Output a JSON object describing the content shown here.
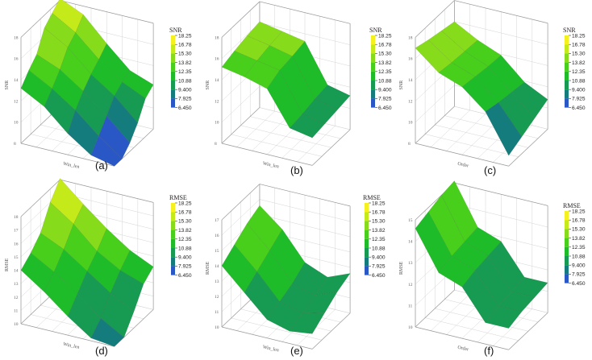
{
  "colorbar": {
    "levels": [
      "18.25",
      "16.78",
      "15.30",
      "13.82",
      "12.35",
      "10.88",
      "9.400",
      "7.925",
      "6.450"
    ],
    "colors": [
      "#f4f11e",
      "#c4ea1a",
      "#86dc1a",
      "#47cf1c",
      "#1fbc2a",
      "#179a52",
      "#157c7e",
      "#2a57c6",
      "#3f3af0"
    ]
  },
  "chart_data": [
    {
      "type": "surface3d",
      "panel_label": "(a)",
      "colorbar_title": "SNR",
      "xlabel": "Win_len",
      "ylabel": "",
      "zlabel": "SNR",
      "zlim": [
        8,
        18
      ],
      "z_ticks": [
        "8",
        "10",
        "12",
        "14",
        "16",
        "18"
      ],
      "grid": [
        [
          13.2,
          12.0,
          10.0,
          8.5,
          7.2
        ],
        [
          14.2,
          13.0,
          11.5,
          9.6,
          8.0
        ],
        [
          15.0,
          14.1,
          12.6,
          10.8,
          8.8
        ],
        [
          16.8,
          15.5,
          13.5,
          12.0,
          10.0
        ],
        [
          17.5,
          16.2,
          14.2,
          12.6,
          11.6
        ],
        [
          18.2,
          17.2,
          15.0,
          13.0,
          12.2
        ]
      ]
    },
    {
      "type": "surface3d",
      "panel_label": "(b)",
      "colorbar_title": "SNR",
      "xlabel": "Win_len",
      "ylabel": "",
      "zlabel": "SNR",
      "zlim": [
        8,
        18
      ],
      "z_ticks": [
        "8",
        "10",
        "12",
        "14",
        "16",
        "18"
      ],
      "grid": [
        [
          15.2,
          14.8,
          14.2,
          11.0,
          10.6
        ],
        [
          15.6,
          15.2,
          14.8,
          11.2,
          10.8
        ],
        [
          15.9,
          15.5,
          15.0,
          11.5,
          11.0
        ],
        [
          16.1,
          15.7,
          15.3,
          11.7,
          11.2
        ]
      ]
    },
    {
      "type": "surface3d",
      "panel_label": "(c)",
      "colorbar_title": "SNR",
      "xlabel": "Order",
      "ylabel": "",
      "zlabel": "SNR",
      "zlim": [
        8,
        18
      ],
      "z_ticks": [
        "8",
        "10",
        "12",
        "14",
        "16",
        "18"
      ],
      "grid": [
        [
          17.0,
          15.2,
          14.4,
          12.6,
          9.0
        ],
        [
          16.6,
          15.0,
          14.2,
          12.3,
          9.6
        ],
        [
          16.3,
          14.9,
          14.0,
          12.1,
          10.2
        ],
        [
          16.0,
          14.8,
          13.9,
          11.9,
          10.8
        ]
      ]
    },
    {
      "type": "surface3d",
      "panel_label": "(d)",
      "colorbar_title": "RMSE",
      "xlabel": "Win_len",
      "ylabel": "",
      "zlabel": "RMSE",
      "zlim": [
        10,
        18
      ],
      "z_ticks": [
        "10",
        "11",
        "12",
        "13",
        "14",
        "15",
        "16",
        "17",
        "18"
      ],
      "grid": [
        [
          14.0,
          12.8,
          11.4,
          10.2,
          8.6
        ],
        [
          14.6,
          13.6,
          12.4,
          11.0,
          9.8
        ],
        [
          15.4,
          14.6,
          13.4,
          12.2,
          11.2
        ],
        [
          17.0,
          15.8,
          14.2,
          13.2,
          12.6
        ],
        [
          18.1,
          16.6,
          15.2,
          14.0,
          13.2
        ]
      ]
    },
    {
      "type": "surface3d",
      "panel_label": "(e)",
      "colorbar_title": "RMSE",
      "xlabel": "Win_len",
      "ylabel": "",
      "zlabel": "RMSE",
      "zlim": [
        10,
        17
      ],
      "z_ticks": [
        "10",
        "11",
        "12",
        "13",
        "14",
        "15",
        "16",
        "17"
      ],
      "grid": [
        [
          14.0,
          12.6,
          11.2,
          10.8,
          11.0
        ],
        [
          14.6,
          13.2,
          11.6,
          11.2,
          11.6
        ],
        [
          15.2,
          13.8,
          12.0,
          11.6,
          12.2
        ],
        [
          15.6,
          14.4,
          12.6,
          12.0,
          12.6
        ]
      ]
    },
    {
      "type": "surface3d",
      "panel_label": "(f)",
      "colorbar_title": "RMSE",
      "xlabel": "Order",
      "ylabel": "",
      "zlabel": "RMSE",
      "zlim": [
        10,
        15
      ],
      "z_ticks": [
        "10",
        "11",
        "12",
        "13",
        "14",
        "15"
      ],
      "grid": [
        [
          14.6,
          12.8,
          12.4,
          11.0,
          11.0
        ],
        [
          14.8,
          13.0,
          12.6,
          11.2,
          11.2
        ],
        [
          15.0,
          13.1,
          12.7,
          11.3,
          11.3
        ],
        [
          15.1,
          13.2,
          12.8,
          11.4,
          11.4
        ]
      ]
    }
  ]
}
